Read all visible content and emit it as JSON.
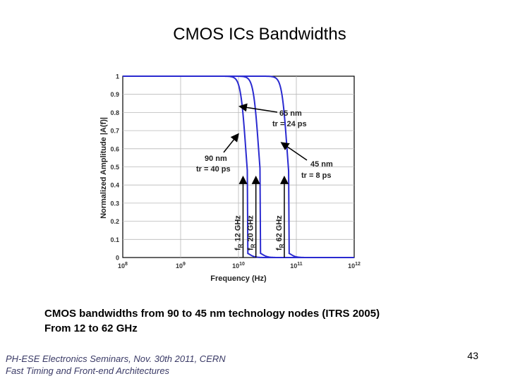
{
  "slide": {
    "title": "CMOS  ICs Bandwidths",
    "caption_line1": "CMOS  bandwidths from 90 to 45 nm technology nodes (ITRS 2005)",
    "caption_line2": "From 12 to 62 GHz",
    "footer_line1": "PH-ESE Electronics Seminars,  Nov. 30th 2011, CERN",
    "footer_line2": "Fast Timing and Front-end Architectures",
    "page_number": "43"
  },
  "chart_data": {
    "type": "line",
    "title": "",
    "xlabel": "Frequency (Hz)",
    "ylabel": "Normalized Amplitude |A(f)|",
    "x_scale": "log",
    "xlim": [
      100000000,
      1000000000000
    ],
    "ylim": [
      0,
      1
    ],
    "x_ticks": [
      {
        "value": 100000000,
        "base": "10",
        "exp": "8"
      },
      {
        "value": 1000000000,
        "base": "10",
        "exp": "9"
      },
      {
        "value": 10000000000,
        "base": "10",
        "exp": "10"
      },
      {
        "value": 100000000000,
        "base": "10",
        "exp": "11"
      },
      {
        "value": 1000000000000,
        "base": "10",
        "exp": "12"
      }
    ],
    "y_ticks": [
      "0",
      "0.1",
      "0.2",
      "0.3",
      "0.4",
      "0.5",
      "0.6",
      "0.7",
      "0.8",
      "0.9",
      "1"
    ],
    "grid": true,
    "line_color": "#2a2ad0",
    "series": [
      {
        "bandwidth_hz": 12000000000,
        "steepness": 5.0
      },
      {
        "bandwidth_hz": 20000000000,
        "steepness": 5.0
      },
      {
        "bandwidth_hz": 62000000000,
        "steepness": 5.0
      }
    ],
    "annotations": [
      {
        "id": "n90",
        "line1": "90 nm",
        "line2": "tr = 40 ps"
      },
      {
        "id": "n65",
        "line1": "65 nm",
        "line2": "tr = 24 ps"
      },
      {
        "id": "n45",
        "line1": "45 nm",
        "line2": "tr = 8 ps"
      }
    ],
    "bandwidth_labels": [
      {
        "x": 12000000000,
        "text": "12 GHz"
      },
      {
        "x": 20000000000,
        "text": "20 GHz"
      },
      {
        "x": 62000000000,
        "text": "62 GHz"
      }
    ],
    "fr_symbol": "f",
    "fr_subscript": "R"
  }
}
